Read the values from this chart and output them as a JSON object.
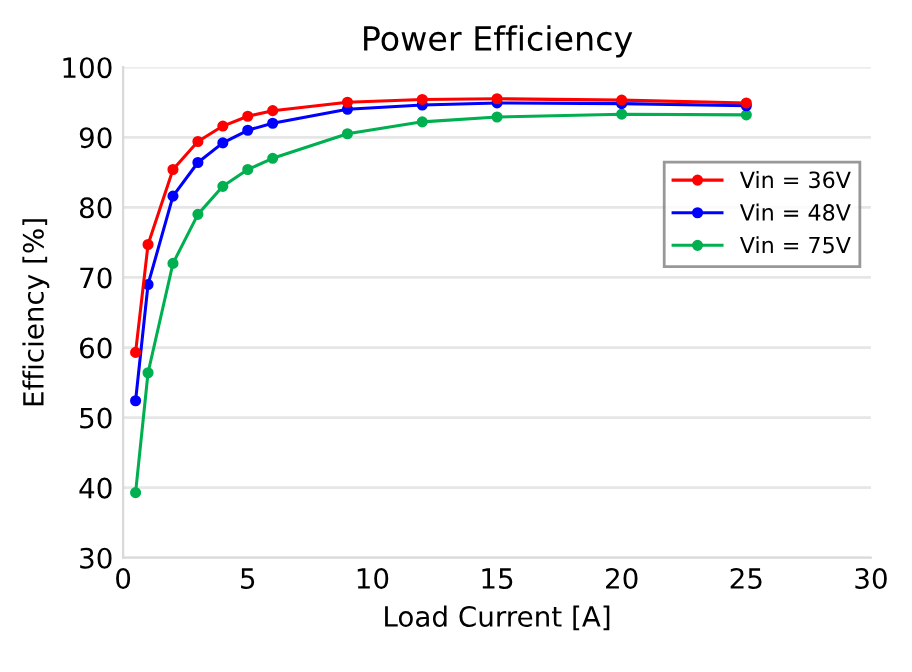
{
  "chart_data": {
    "type": "line",
    "title": "Power Efficiency",
    "xlabel": "Load Current [A]",
    "ylabel": "Efficiency [%]",
    "x": [
      0.5,
      1,
      2,
      3,
      4,
      5,
      6,
      9,
      12,
      15,
      20,
      25
    ],
    "series": [
      {
        "name": "Vin = 36V",
        "color": "#ff0000",
        "values": [
          59.3,
          74.7,
          85.4,
          89.4,
          91.6,
          93.0,
          93.8,
          95.0,
          95.4,
          95.5,
          95.3,
          94.9
        ]
      },
      {
        "name": "Vin = 48V",
        "color": "#0000ff",
        "values": [
          52.4,
          69.0,
          81.6,
          86.4,
          89.2,
          91.0,
          92.0,
          94.0,
          94.6,
          94.9,
          94.8,
          94.5
        ]
      },
      {
        "name": "Vin = 75V",
        "color": "#00b050",
        "values": [
          39.3,
          56.4,
          72.0,
          79.0,
          83.0,
          85.4,
          87.0,
          90.5,
          92.2,
          92.9,
          93.3,
          93.2
        ]
      }
    ],
    "xlim": [
      0,
      30
    ],
    "xticks": [
      0,
      5,
      10,
      15,
      20,
      25,
      30
    ],
    "ylim": [
      30,
      100
    ],
    "yticks": [
      30,
      40,
      50,
      60,
      70,
      80,
      90,
      100
    ],
    "grid": "y",
    "legend": "right",
    "marker": "circle",
    "line_style": "solid"
  }
}
